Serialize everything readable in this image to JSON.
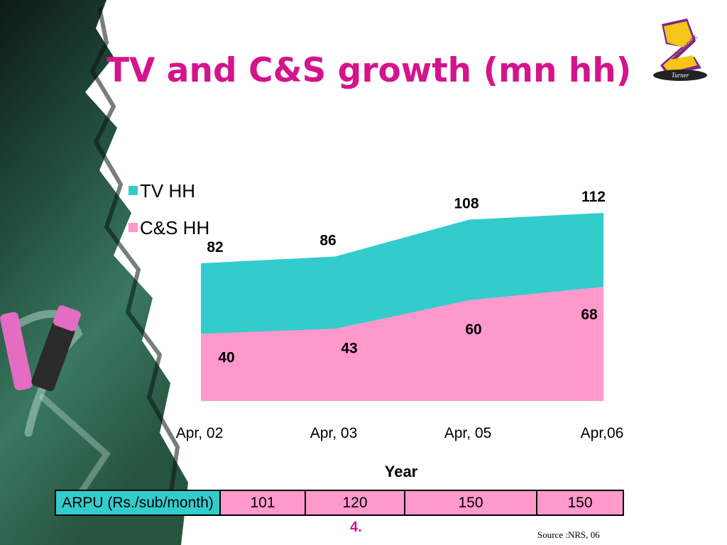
{
  "slide": {
    "title": "TV and C&S growth (mn hh)",
    "page_number": "4.",
    "source": "Source :NRS, 06",
    "logo": {
      "text": "NETWORK",
      "brand": "Turner"
    }
  },
  "colors": {
    "title": "#d4148c",
    "tv_hh": "#33cccc",
    "cs_hh": "#ff99cc"
  },
  "chart_data": {
    "type": "area",
    "categories": [
      "Apr, 02",
      "Apr, 03",
      "Apr, 05",
      "Apr,06"
    ],
    "series": [
      {
        "name": "TV HH",
        "values": [
          82,
          86,
          108,
          112
        ],
        "color": "#33cccc"
      },
      {
        "name": "C&S HH",
        "values": [
          40,
          43,
          60,
          68
        ],
        "color": "#ff99cc"
      }
    ],
    "xlabel": "Year",
    "ylabel": "",
    "ylim": [
      0,
      112
    ],
    "legend": "top-left",
    "grid": false
  },
  "arpu": {
    "label": "ARPU (Rs./sub/month)",
    "values": [
      "101",
      "120",
      "150",
      "150"
    ]
  }
}
